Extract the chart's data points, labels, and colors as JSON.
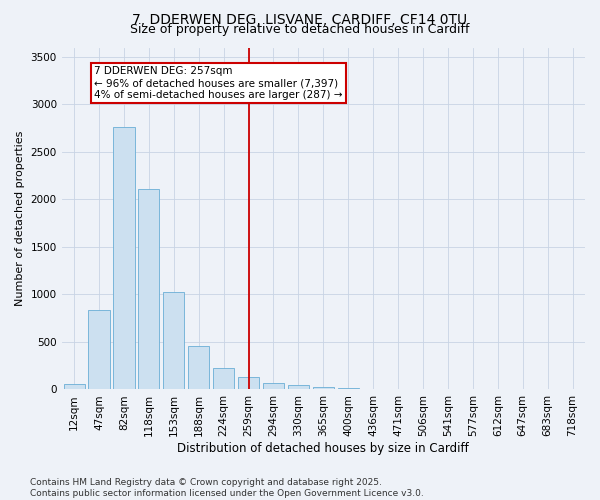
{
  "title": "7, DDERWEN DEG, LISVANE, CARDIFF, CF14 0TU",
  "subtitle": "Size of property relative to detached houses in Cardiff",
  "xlabel": "Distribution of detached houses by size in Cardiff",
  "ylabel": "Number of detached properties",
  "bar_color": "#cce0f0",
  "bar_edge_color": "#6aaed6",
  "background_color": "#eef2f8",
  "grid_color": "#c8d4e4",
  "categories": [
    "12sqm",
    "47sqm",
    "82sqm",
    "118sqm",
    "153sqm",
    "188sqm",
    "224sqm",
    "259sqm",
    "294sqm",
    "330sqm",
    "365sqm",
    "400sqm",
    "436sqm",
    "471sqm",
    "506sqm",
    "541sqm",
    "577sqm",
    "612sqm",
    "647sqm",
    "683sqm",
    "718sqm"
  ],
  "values": [
    55,
    840,
    2760,
    2110,
    1030,
    455,
    225,
    135,
    65,
    50,
    30,
    20,
    10,
    5,
    0,
    0,
    0,
    0,
    0,
    0,
    0
  ],
  "vline_x": 7,
  "vline_color": "#cc0000",
  "annotation_text": "7 DDERWEN DEG: 257sqm\n← 96% of detached houses are smaller (7,397)\n4% of semi-detached houses are larger (287) →",
  "annotation_box_color": "#ffffff",
  "annotation_box_edge_color": "#cc0000",
  "ylim": [
    0,
    3600
  ],
  "yticks": [
    0,
    500,
    1000,
    1500,
    2000,
    2500,
    3000,
    3500
  ],
  "footer": "Contains HM Land Registry data © Crown copyright and database right 2025.\nContains public sector information licensed under the Open Government Licence v3.0.",
  "title_fontsize": 10,
  "subtitle_fontsize": 9,
  "xlabel_fontsize": 8.5,
  "ylabel_fontsize": 8,
  "tick_fontsize": 7.5,
  "annotation_fontsize": 7.5,
  "footer_fontsize": 6.5
}
